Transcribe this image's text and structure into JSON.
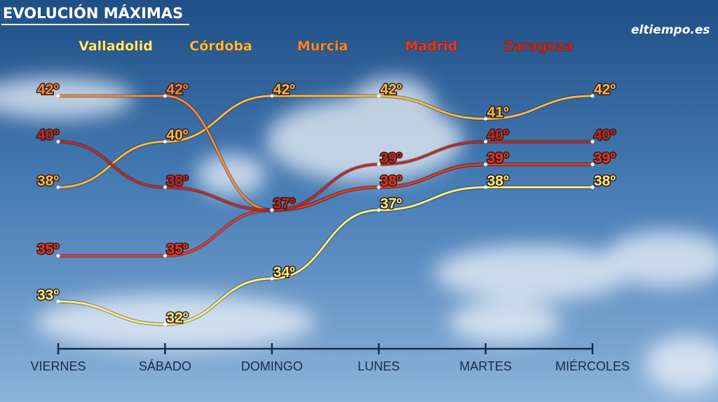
{
  "chart_data": {
    "type": "line",
    "title": "EVOLUCIÓN MÁXIMAS",
    "logo": "eltiempo.es",
    "categories": [
      "VIERNES",
      "SÁBADO",
      "DOMINGO",
      "LUNES",
      "MARTES",
      "MIÉRCOLES"
    ],
    "series": [
      {
        "name": "Valladolid",
        "color": "#f5ee84",
        "values": [
          33,
          32,
          34,
          37,
          38,
          38
        ],
        "value_labels": [
          "33º",
          "32º",
          "34º",
          "37º",
          "38º",
          "38º"
        ]
      },
      {
        "name": "Córdoba",
        "color": "#f1bb4a",
        "values": [
          38,
          40,
          42,
          42,
          41,
          42
        ],
        "value_labels": [
          "38º",
          "40º",
          "42º",
          "42º",
          "41º",
          "42º"
        ]
      },
      {
        "name": "Murcia",
        "color": "#ec8c38",
        "values": [
          42,
          42,
          37,
          38,
          39,
          39
        ],
        "value_labels": [
          "42º",
          "42º",
          "37º",
          "38º",
          "39º",
          "39º"
        ]
      },
      {
        "name": "Madrid",
        "color": "#e2392a",
        "values": [
          35,
          35,
          37,
          38,
          39,
          39
        ],
        "value_labels": [
          "35º",
          "35º",
          "37º",
          "38º",
          "39º",
          "39º"
        ]
      },
      {
        "name": "Zaragoza",
        "color": "#bb2a28",
        "values": [
          40,
          38,
          37,
          39,
          40,
          40
        ],
        "value_labels": [
          "40º",
          "38º",
          "37º",
          "39º",
          "40º",
          "40º"
        ]
      }
    ]
  }
}
